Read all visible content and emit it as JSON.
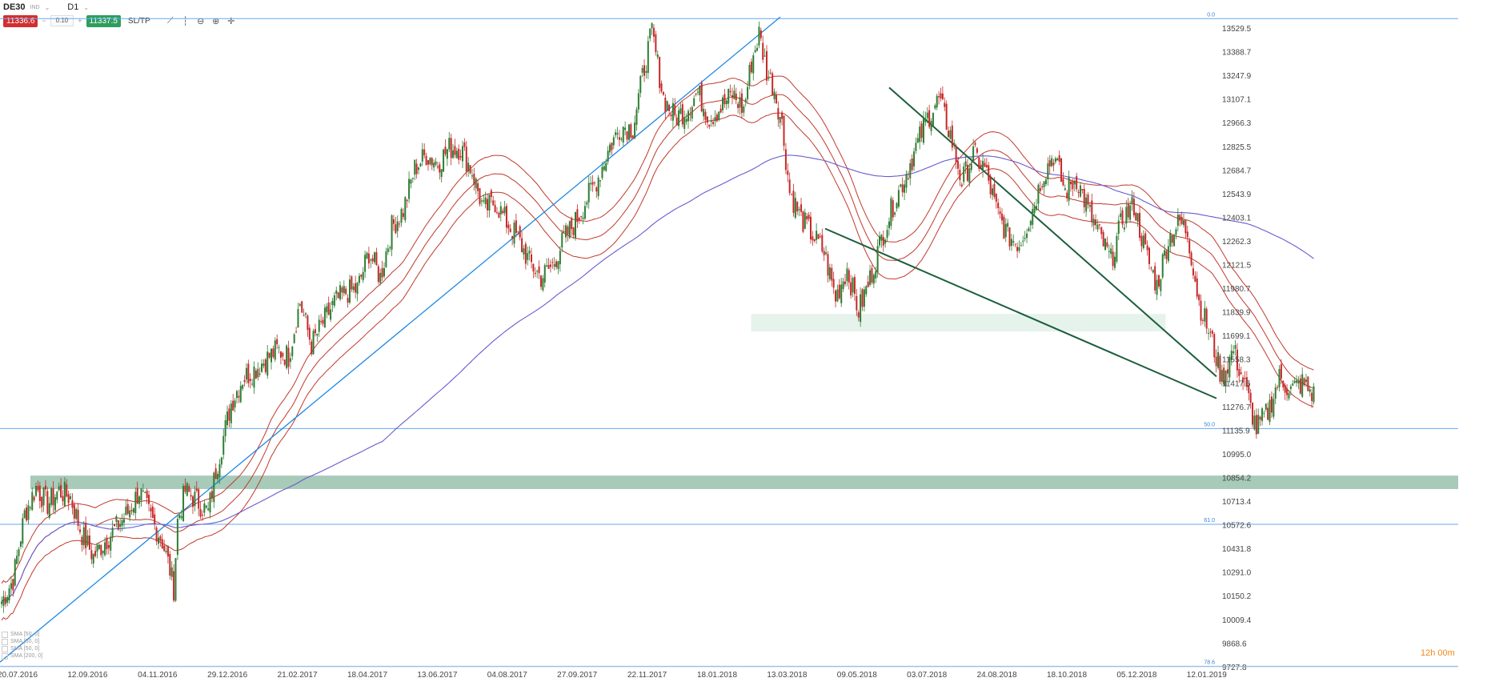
{
  "toolbar": {
    "symbol": "DE30",
    "symbol_tag": "IND",
    "timeframe": "D1",
    "sell_price": "11336.6",
    "lot": "0.10",
    "buy_price": "11337.5",
    "sltp_label": "SL/TP",
    "tools": [
      {
        "name": "line-chart-icon",
        "glyph": "⟋"
      },
      {
        "name": "bar-chart-icon",
        "glyph": "┆"
      },
      {
        "name": "zoom-out-icon",
        "glyph": "⊖"
      },
      {
        "name": "zoom-in-icon",
        "glyph": "⊕"
      },
      {
        "name": "crosshair-icon",
        "glyph": "✛"
      }
    ]
  },
  "colors": {
    "bull": "#2e7d32",
    "bear": "#c62828",
    "envelope": "#c0392b",
    "sma200": "#6a5acd",
    "trend_up": "#1e88e5",
    "channel": "#1b5e3b",
    "level": "#64a9f0",
    "zone_dark": "#5f9e80",
    "zone_light": "#7bbf9e"
  },
  "legend": [
    "SMA [50, 0]",
    "SMA [50, 0]",
    "SMA [50, 0]",
    "SMA [200, 0]"
  ],
  "countdown": "12h 00m",
  "chart_data": {
    "type": "candlestick",
    "instrument": "DE30",
    "timeframe": "D1",
    "x_ticks": [
      "20.07.2016",
      "12.09.2016",
      "04.11.2016",
      "29.12.2016",
      "21.02.2017",
      "18.04.2017",
      "13.06.2017",
      "04.08.2017",
      "27.09.2017",
      "22.11.2017",
      "18.01.2018",
      "13.03.2018",
      "09.05.2018",
      "03.07.2018",
      "24.08.2018",
      "18.10.2018",
      "05.12.2018",
      "12.01.2019"
    ],
    "y_ticks": [
      13529.5,
      13388.7,
      13247.9,
      13107.1,
      12966.3,
      12825.5,
      12684.7,
      12543.9,
      12403.1,
      12262.3,
      12121.5,
      11980.7,
      11839.9,
      11699.1,
      11558.3,
      11417.5,
      11276.7,
      11135.9,
      10995.0,
      10854.2,
      10713.4,
      10572.6,
      10431.8,
      10291.0,
      10150.2,
      10009.4,
      9868.6,
      9727.8
    ],
    "ylim": [
      9700,
      13620
    ],
    "path_points": [
      [
        0,
        10120
      ],
      [
        6,
        10250
      ],
      [
        12,
        10640
      ],
      [
        18,
        10800
      ],
      [
        24,
        10700
      ],
      [
        30,
        10780
      ],
      [
        36,
        10740
      ],
      [
        42,
        10520
      ],
      [
        48,
        10390
      ],
      [
        54,
        10480
      ],
      [
        60,
        10560
      ],
      [
        66,
        10650
      ],
      [
        72,
        10780
      ],
      [
        78,
        10620
      ],
      [
        84,
        10480
      ],
      [
        88,
        10310
      ],
      [
        90,
        10200
      ],
      [
        92,
        10600
      ],
      [
        96,
        10780
      ],
      [
        102,
        10720
      ],
      [
        108,
        10650
      ],
      [
        112,
        10900
      ],
      [
        116,
        11100
      ],
      [
        120,
        11300
      ],
      [
        126,
        11450
      ],
      [
        132,
        11500
      ],
      [
        138,
        11560
      ],
      [
        144,
        11620
      ],
      [
        150,
        11580
      ],
      [
        156,
        11900
      ],
      [
        162,
        11650
      ],
      [
        168,
        11780
      ],
      [
        174,
        11900
      ],
      [
        180,
        11960
      ],
      [
        186,
        11980
      ],
      [
        192,
        12200
      ],
      [
        198,
        12050
      ],
      [
        204,
        12350
      ],
      [
        210,
        12450
      ],
      [
        216,
        12700
      ],
      [
        222,
        12780
      ],
      [
        228,
        12730
      ],
      [
        234,
        12820
      ],
      [
        240,
        12820
      ],
      [
        246,
        12680
      ],
      [
        252,
        12450
      ],
      [
        258,
        12500
      ],
      [
        264,
        12380
      ],
      [
        270,
        12280
      ],
      [
        276,
        12140
      ],
      [
        282,
        12050
      ],
      [
        288,
        12120
      ],
      [
        294,
        12280
      ],
      [
        300,
        12380
      ],
      [
        306,
        12520
      ],
      [
        312,
        12650
      ],
      [
        318,
        12830
      ],
      [
        324,
        12950
      ],
      [
        330,
        12940
      ],
      [
        336,
        13300
      ],
      [
        340,
        13510
      ],
      [
        346,
        13120
      ],
      [
        352,
        13000
      ],
      [
        358,
        13050
      ],
      [
        364,
        13150
      ],
      [
        370,
        13000
      ],
      [
        376,
        13060
      ],
      [
        382,
        13140
      ],
      [
        388,
        13050
      ],
      [
        392,
        13330
      ],
      [
        396,
        13500
      ],
      [
        400,
        13280
      ],
      [
        404,
        13170
      ],
      [
        408,
        12960
      ],
      [
        412,
        12560
      ],
      [
        418,
        12400
      ],
      [
        424,
        12300
      ],
      [
        430,
        12200
      ],
      [
        436,
        11930
      ],
      [
        442,
        12100
      ],
      [
        448,
        11850
      ],
      [
        454,
        12040
      ],
      [
        460,
        12280
      ],
      [
        466,
        12480
      ],
      [
        472,
        12640
      ],
      [
        478,
        12820
      ],
      [
        484,
        13000
      ],
      [
        490,
        13110
      ],
      [
        496,
        12900
      ],
      [
        502,
        12620
      ],
      [
        508,
        12780
      ],
      [
        514,
        12700
      ],
      [
        520,
        12450
      ],
      [
        526,
        12300
      ],
      [
        532,
        12250
      ],
      [
        538,
        12420
      ],
      [
        544,
        12650
      ],
      [
        550,
        12780
      ],
      [
        556,
        12560
      ],
      [
        562,
        12640
      ],
      [
        568,
        12450
      ],
      [
        574,
        12300
      ],
      [
        580,
        12150
      ],
      [
        586,
        12400
      ],
      [
        592,
        12480
      ],
      [
        598,
        12200
      ],
      [
        604,
        12000
      ],
      [
        610,
        12280
      ],
      [
        616,
        12380
      ],
      [
        620,
        12320
      ],
      [
        626,
        11900
      ],
      [
        632,
        11700
      ],
      [
        638,
        11450
      ],
      [
        644,
        11620
      ],
      [
        650,
        11400
      ],
      [
        656,
        11150
      ],
      [
        662,
        11250
      ],
      [
        668,
        11450
      ],
      [
        674,
        11380
      ],
      [
        680,
        11420
      ],
      [
        686,
        11350
      ]
    ],
    "support_zone_upper": [
      10870,
      10790
    ],
    "support_zone_lower": [
      11830,
      11730
    ],
    "fibonacci_levels": [
      {
        "label": "0.0",
        "value": 13590
      },
      {
        "label": "50.0",
        "value": 11150
      },
      {
        "label": "61.0",
        "value": 10580
      },
      {
        "label": "78.6",
        "value": 9735
      }
    ]
  }
}
